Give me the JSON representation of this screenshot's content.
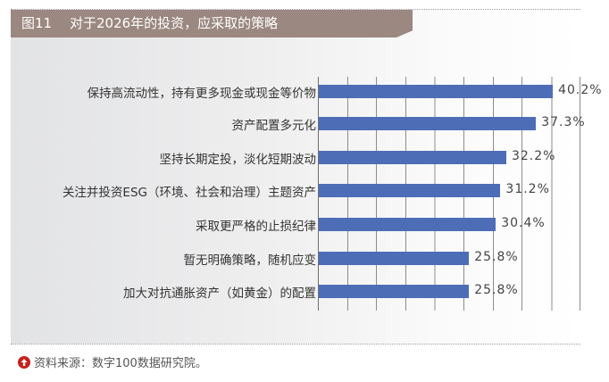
{
  "figure": {
    "number": "图11",
    "title": "对于2026年的投资，应采取的策略"
  },
  "source": {
    "text": "资料来源：数字100数据研究院。",
    "icon": "up-arrow-circle-icon"
  },
  "colors": {
    "title_bar": "#9b8880",
    "bar": "#4d6db7",
    "source_icon": "#c8201c"
  },
  "chart_data": {
    "type": "bar",
    "orientation": "horizontal",
    "title": "对于2026年的投资，应采取的策略",
    "xlabel": "",
    "ylabel": "",
    "xlim": [
      0,
      45
    ],
    "grid": true,
    "grid_step": 5,
    "legend": null,
    "categories": [
      "保持高流动性，持有更多现金或现金等价物",
      "资产配置多元化",
      "坚持长期定投，淡化短期波动",
      "关注并投资ESG（环境、社会和治理）主题资产",
      "采取更严格的止损纪律",
      "暂无明确策略，随机应变",
      "加大对抗通胀资产（如黄金）的配置"
    ],
    "values": [
      40.2,
      37.3,
      32.2,
      31.2,
      30.4,
      25.8,
      25.8
    ],
    "value_labels": [
      "40.2%",
      "37.3%",
      "32.2%",
      "31.2%",
      "30.4%",
      "25.8%",
      "25.8%"
    ],
    "source": "资料来源：数字100数据研究院。"
  }
}
